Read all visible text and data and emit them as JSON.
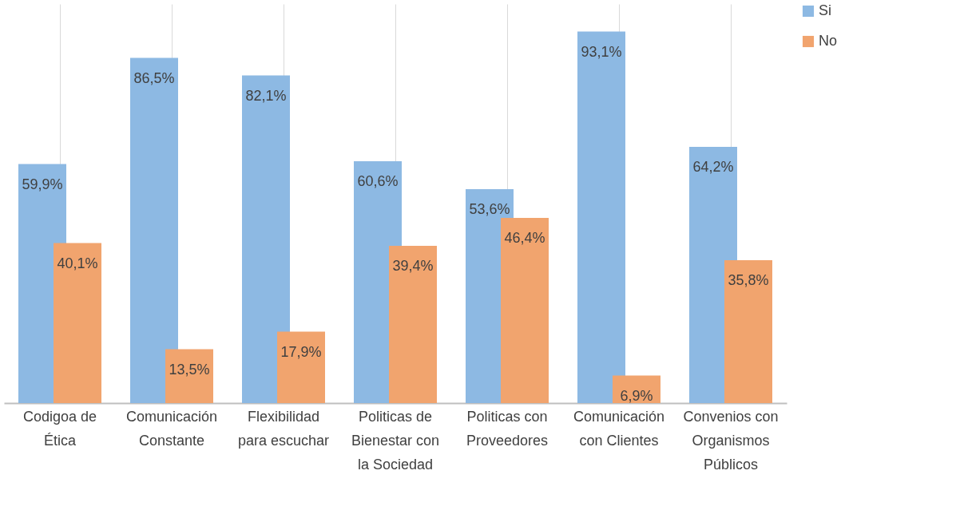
{
  "chart_data": {
    "type": "bar",
    "categories": [
      "Codigoa de Ética",
      "Comunicación Constante",
      "Flexibilidad para escuchar",
      "Politicas de Bienestar con la Sociedad",
      "Politicas con Proveedores",
      "Comunicación con Clientes",
      "Convenios con Organismos Públicos"
    ],
    "series": [
      {
        "name": "Si",
        "color": "#8db9e3",
        "values": [
          59.9,
          86.5,
          82.1,
          60.6,
          53.6,
          93.1,
          64.2
        ],
        "value_labels": [
          "59,9%",
          "86,5%",
          "82,1%",
          "60,6%",
          "53,6%",
          "93,1%",
          "64,2%"
        ]
      },
      {
        "name": "No",
        "color": "#f1a46e",
        "values": [
          40.1,
          13.5,
          17.9,
          39.4,
          46.4,
          6.9,
          35.8
        ],
        "value_labels": [
          "40,1%",
          "13,5%",
          "17,9%",
          "39,4%",
          "46,4%",
          "6,9%",
          "35,8%"
        ]
      }
    ],
    "legend": "right",
    "grid": "x",
    "tick_labels": "x"
  }
}
